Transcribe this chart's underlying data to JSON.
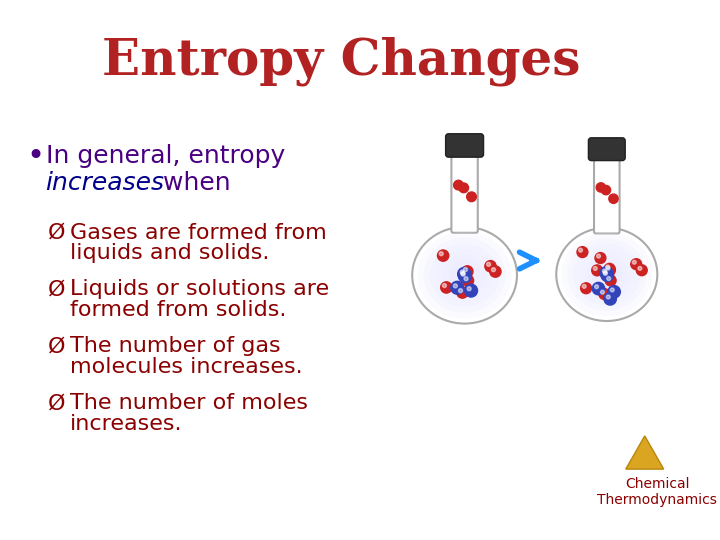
{
  "title": "Entropy Changes",
  "title_color": "#B22222",
  "title_fontsize": 36,
  "title_fontstyle": "normal",
  "background_color": "#FFFFFF",
  "bullet_text": "In general, entropy",
  "bullet_italic": "increases",
  "bullet_suffix": " when",
  "bullet_color": "#4B0082",
  "bullet_fontsize": 18,
  "items": [
    "Gases are formed from\n    liquids and solids.",
    "Liquids or solutions are\n    formed from solids.",
    "The number of gas\n    molecules increases.",
    "The number of moles\n    increases."
  ],
  "item_color": "#8B0000",
  "item_fontsize": 16,
  "arrow_color": "#1E90FF",
  "watermark_text": "Chemical\nThermodynamics",
  "watermark_color": "#8B0000",
  "watermark_fontsize": 10,
  "increases_color": "#00008B"
}
